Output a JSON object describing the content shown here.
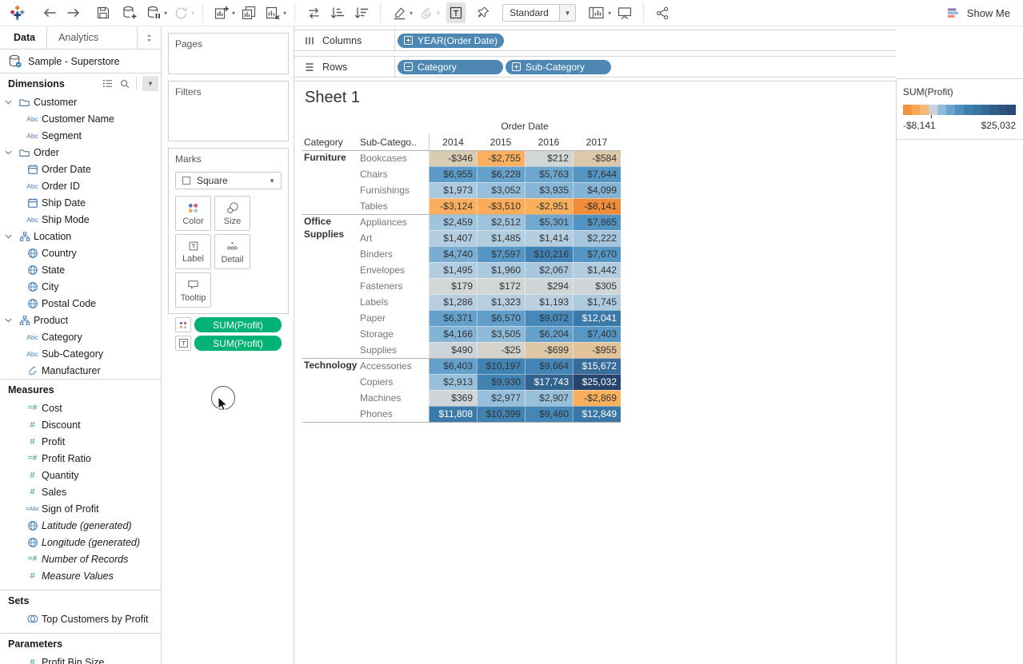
{
  "toolbar": {
    "icons": [
      "tableau-logo",
      "undo",
      "redo",
      "save",
      "new-data-source",
      "pause-auto-updates",
      "run-auto-updates",
      "new-worksheet",
      "duplicate-sheet",
      "clear-sheet",
      "swap-rows-columns",
      "sort-ascending",
      "sort-descending",
      "highlight",
      "group-members",
      "show-mark-labels",
      "fix-axes",
      "fit-selector",
      "show-hide-cards",
      "presentation-mode",
      "share-workbook",
      "show-me"
    ],
    "view_mode": "Standard",
    "show_me_label": "Show Me"
  },
  "sidebar": {
    "tabs": [
      {
        "label": "Data"
      },
      {
        "label": "Analytics"
      }
    ],
    "datasource": "Sample - Superstore",
    "sections": [
      {
        "title": "Dimensions",
        "items": [
          {
            "icon": "folder",
            "label": "Customer",
            "group": true
          },
          {
            "icon": "abc",
            "label": "Customer Name"
          },
          {
            "icon": "abc",
            "label": "Segment"
          },
          {
            "icon": "folder",
            "label": "Order",
            "group": true
          },
          {
            "icon": "cal",
            "label": "Order Date"
          },
          {
            "icon": "abc",
            "label": "Order ID"
          },
          {
            "icon": "cal",
            "label": "Ship Date"
          },
          {
            "icon": "abc",
            "label": "Ship Mode"
          },
          {
            "icon": "hier",
            "label": "Location",
            "group": true
          },
          {
            "icon": "globe",
            "label": "Country"
          },
          {
            "icon": "globe",
            "label": "State"
          },
          {
            "icon": "globe",
            "label": "City"
          },
          {
            "icon": "globe",
            "label": "Postal Code"
          },
          {
            "icon": "hier",
            "label": "Product",
            "group": true
          },
          {
            "icon": "abc",
            "label": "Category"
          },
          {
            "icon": "abc",
            "label": "Sub-Category"
          },
          {
            "icon": "clip",
            "label": "Manufacturer"
          }
        ]
      },
      {
        "title": "Measures",
        "items": [
          {
            "icon": "eqnum",
            "label": "Cost"
          },
          {
            "icon": "num",
            "label": "Discount"
          },
          {
            "icon": "num",
            "label": "Profit"
          },
          {
            "icon": "eqnum",
            "label": "Profit Ratio"
          },
          {
            "icon": "num",
            "label": "Quantity"
          },
          {
            "icon": "num",
            "label": "Sales"
          },
          {
            "icon": "eqabc",
            "label": "Sign of Profit"
          },
          {
            "icon": "globe",
            "label": "Latitude (generated)",
            "italic": true
          },
          {
            "icon": "globe",
            "label": "Longitude (generated)",
            "italic": true
          },
          {
            "icon": "eqnum",
            "label": "Number of Records",
            "italic": true
          },
          {
            "icon": "num",
            "label": "Measure Values",
            "italic": true
          }
        ]
      },
      {
        "title": "Sets",
        "items": [
          {
            "icon": "set",
            "label": "Top Customers by Profit"
          }
        ]
      },
      {
        "title": "Parameters",
        "items": [
          {
            "icon": "num",
            "label": "Profit Bin Size"
          }
        ]
      }
    ]
  },
  "cards": {
    "pages_label": "Pages",
    "filters_label": "Filters",
    "marks_label": "Marks",
    "mark_type": "Square",
    "buttons": [
      {
        "label": "Color"
      },
      {
        "label": "Size"
      },
      {
        "label": "Label"
      },
      {
        "label": "Detail"
      },
      {
        "label": "Tooltip"
      }
    ],
    "pills": [
      {
        "icon": "color",
        "label": "SUM(Profit)"
      },
      {
        "icon": "text",
        "label": "SUM(Profit)"
      }
    ]
  },
  "shelves": {
    "columns_label": "Columns",
    "rows_label": "Rows",
    "columns_pills": [
      {
        "prefix": "plus",
        "label": "YEAR(Order Date)"
      }
    ],
    "rows_pills": [
      {
        "prefix": "minus",
        "label": "Category"
      },
      {
        "prefix": "plus",
        "label": "Sub-Category"
      }
    ]
  },
  "sheet": {
    "title": "Sheet 1"
  },
  "chart_data": {
    "type": "heatmap",
    "title": "Sheet 1",
    "column_group_label": "Order Date",
    "row_headers": [
      "Category",
      "Sub-Catego.."
    ],
    "columns": [
      "2014",
      "2015",
      "2016",
      "2017"
    ],
    "groups": [
      {
        "category": "Furniture",
        "rows": [
          {
            "label": "Bookcases",
            "values": [
              -346,
              -2755,
              212,
              -584
            ]
          },
          {
            "label": "Chairs",
            "values": [
              6955,
              6228,
              5763,
              7644
            ]
          },
          {
            "label": "Furnishings",
            "values": [
              1973,
              3052,
              3935,
              4099
            ]
          },
          {
            "label": "Tables",
            "values": [
              -3124,
              -3510,
              -2951,
              -8141
            ]
          }
        ]
      },
      {
        "category": "Office Supplies",
        "rows": [
          {
            "label": "Appliances",
            "values": [
              2459,
              2512,
              5301,
              7865
            ]
          },
          {
            "label": "Art",
            "values": [
              1407,
              1485,
              1414,
              2222
            ]
          },
          {
            "label": "Binders",
            "values": [
              4740,
              7597,
              10216,
              7670
            ]
          },
          {
            "label": "Envelopes",
            "values": [
              1495,
              1960,
              2067,
              1442
            ]
          },
          {
            "label": "Fasteners",
            "values": [
              179,
              172,
              294,
              305
            ]
          },
          {
            "label": "Labels",
            "values": [
              1286,
              1323,
              1193,
              1745
            ]
          },
          {
            "label": "Paper",
            "values": [
              6371,
              6570,
              9072,
              12041
            ]
          },
          {
            "label": "Storage",
            "values": [
              4166,
              3505,
              6204,
              7403
            ]
          },
          {
            "label": "Supplies",
            "values": [
              490,
              -25,
              -699,
              -955
            ]
          }
        ]
      },
      {
        "category": "Technology",
        "rows": [
          {
            "label": "Accessories",
            "values": [
              6403,
              10197,
              9664,
              15672
            ]
          },
          {
            "label": "Copiers",
            "values": [
              2913,
              9930,
              17743,
              25032
            ]
          },
          {
            "label": "Machines",
            "values": [
              369,
              2977,
              2907,
              -2869
            ]
          },
          {
            "label": "Phones",
            "values": [
              11808,
              10399,
              9460,
              12849
            ]
          }
        ]
      }
    ],
    "color_domain": [
      -8141,
      0,
      25032
    ],
    "palette": {
      "negative": "#f18c3a",
      "center": "#d6d7d3",
      "positive": "#26456e"
    },
    "legend_position": "right"
  },
  "legend": {
    "title": "SUM(Profit)",
    "min_label": "-$8,141",
    "max_label": "$25,032"
  }
}
